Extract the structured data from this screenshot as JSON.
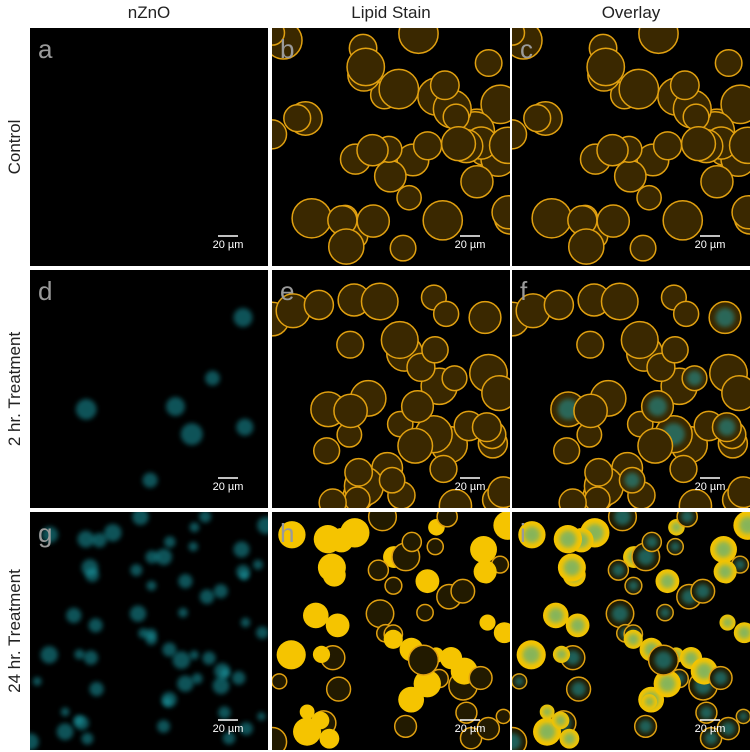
{
  "columns": [
    "nZnO",
    "Lipid Stain",
    "Overlay"
  ],
  "rows": [
    "Control",
    "2 hr. Treatment",
    "24 hr. Treatment"
  ],
  "panels": [
    {
      "label": "a",
      "scale_bar": "20 µm"
    },
    {
      "label": "b",
      "scale_bar": "20 µm"
    },
    {
      "label": "c",
      "scale_bar": "20 µm"
    },
    {
      "label": "d",
      "scale_bar": "20 µm"
    },
    {
      "label": "e",
      "scale_bar": "20 µm"
    },
    {
      "label": "f",
      "scale_bar": "20 µm"
    },
    {
      "label": "g",
      "scale_bar": "20 µm"
    },
    {
      "label": "h",
      "scale_bar": "20 µm"
    },
    {
      "label": "i",
      "scale_bar": "20 µm"
    }
  ]
}
